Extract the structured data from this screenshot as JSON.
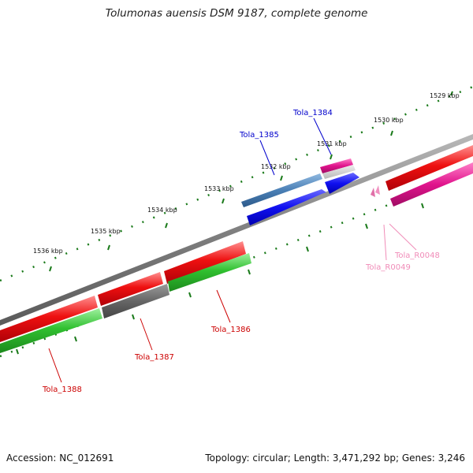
{
  "title": "Tolumonas auensis DSM 9187, complete genome",
  "footer": {
    "accession": "Accession: NC_012691",
    "summary": "Topology: circular; Length: 3,471,292 bp; Genes: 3,246"
  },
  "ticks": [
    "1529 kbp",
    "1530 kbp",
    "1531 kbp",
    "1532 kbp",
    "1533 kbp",
    "1534 kbp",
    "1535 kbp",
    "1536 kbp"
  ],
  "labels": {
    "tola_1384": "Tola_1384",
    "tola_1385": "Tola_1385",
    "tola_1386": "Tola_1386",
    "tola_1387": "Tola_1387",
    "tola_1388": "Tola_1388",
    "tola_r0048": "Tola_R0048",
    "tola_r0049": "Tola_R0049"
  },
  "colors": {
    "backbone": "#808080",
    "ticks": "#1a7a1a",
    "cds_red": "#e8000e",
    "cds_green": "#2fbf2f",
    "pseudo_gray": "#5f5f5f",
    "blue_gene": "#1010f0",
    "steel_gene": "#4a7fb5",
    "pink_gene": "#e0138c",
    "rna_pink": "#f090c0",
    "label_blue": "#0000cc",
    "label_red": "#cc0000",
    "label_pink": "#f08cb8"
  }
}
